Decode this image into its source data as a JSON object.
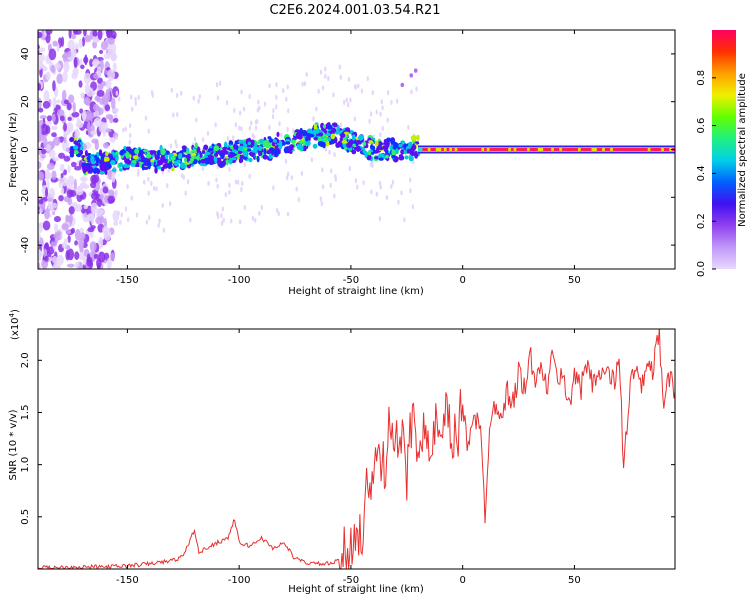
{
  "title": "C2E6.2024.001.03.54.R21",
  "chart_data": [
    {
      "type": "heatmap",
      "xlabel": "Height of straight line (km)",
      "ylabel": "Frequency (Hz)",
      "xlim": [
        -190,
        95
      ],
      "ylim": [
        -50,
        50
      ],
      "xticks": [
        -150,
        -100,
        -50,
        0,
        50
      ],
      "yticks": [
        -40,
        -20,
        0,
        20,
        40
      ],
      "colorbar": {
        "label": "Normalized spectral amplitude",
        "range": [
          0,
          1
        ],
        "ticks": [
          0.0,
          0.2,
          0.4,
          0.6,
          0.8
        ],
        "tick_labels": [
          "0.0",
          "0.2",
          "0.4",
          "0.6",
          "0.8"
        ],
        "colormap": [
          "#e8d8ff",
          "#c098f8",
          "#9040f0",
          "#4010f0",
          "#0060ff",
          "#00d0e8",
          "#20f080",
          "#60ff00",
          "#f0f000",
          "#ffa000",
          "#ff3000",
          "#ff0060"
        ]
      },
      "ridge": {
        "description_points": [
          [
            -170,
            -6
          ],
          [
            -150,
            -4
          ],
          [
            -130,
            -4
          ],
          [
            -110,
            -2
          ],
          [
            -90,
            0
          ],
          [
            -75,
            3
          ],
          [
            -60,
            7
          ],
          [
            -50,
            4
          ],
          [
            -40,
            0
          ],
          [
            -30,
            -1
          ],
          [
            -25,
            0
          ],
          [
            -20,
            1
          ],
          [
            0,
            0
          ],
          [
            50,
            0
          ],
          [
            95,
            0
          ]
        ],
        "steady_from": -20
      }
    },
    {
      "type": "line",
      "xlabel": "Height of straight line (km)",
      "ylabel": "SNR (10 * v/v)",
      "multiplier": "(x10",
      "multiplier_exp": "4",
      "xlim": [
        -190,
        95
      ],
      "ylim": [
        0,
        2.3
      ],
      "xticks": [
        -150,
        -100,
        -50,
        0,
        50
      ],
      "yticks": [
        0.5,
        1.0,
        1.5,
        2.0
      ],
      "ytick_labels": [
        "0.5",
        "1.0",
        "1.5",
        "2.0"
      ],
      "series": [
        {
          "color": "#e83030",
          "x": [
            -190,
            -175,
            -160,
            -150,
            -140,
            -130,
            -125,
            -120,
            -118,
            -115,
            -110,
            -105,
            -102,
            -100,
            -95,
            -90,
            -85,
            -80,
            -75,
            -70,
            -65,
            -60,
            -55,
            -50,
            -48,
            -45,
            -42,
            -40,
            -38,
            -35,
            -33,
            -30,
            -28,
            -25,
            -22,
            -20,
            -18,
            -15,
            -12,
            -10,
            -7,
            -5,
            -2,
            0,
            2,
            5,
            8,
            10,
            12,
            15,
            18,
            20,
            23,
            25,
            28,
            30,
            33,
            35,
            38,
            40,
            43,
            45,
            48,
            50,
            53,
            55,
            58,
            60,
            63,
            65,
            68,
            70,
            72,
            75,
            78,
            80,
            83,
            85,
            88,
            90,
            92,
            95
          ],
          "y": [
            0.01,
            0.02,
            0.02,
            0.03,
            0.05,
            0.08,
            0.12,
            0.38,
            0.15,
            0.2,
            0.25,
            0.3,
            0.48,
            0.25,
            0.22,
            0.3,
            0.2,
            0.25,
            0.1,
            0.06,
            0.05,
            0.05,
            0.08,
            0.2,
            0.45,
            0.3,
            0.9,
            0.7,
            1.2,
            0.9,
            1.6,
            1.1,
            1.3,
            0.9,
            1.6,
            1.2,
            1.4,
            1.0,
            1.4,
            1.1,
            1.5,
            1.2,
            1.3,
            1.6,
            1.2,
            1.5,
            1.3,
            0.5,
            1.4,
            1.6,
            1.5,
            1.7,
            1.6,
            1.9,
            1.7,
            2.05,
            1.8,
            1.9,
            1.75,
            2.0,
            1.85,
            1.8,
            1.6,
            1.9,
            1.7,
            2.0,
            1.8,
            1.9,
            1.85,
            1.9,
            1.75,
            2.1,
            0.95,
            1.8,
            1.9,
            1.7,
            2.0,
            1.9,
            2.25,
            1.5,
            1.85,
            1.7
          ]
        }
      ]
    }
  ]
}
